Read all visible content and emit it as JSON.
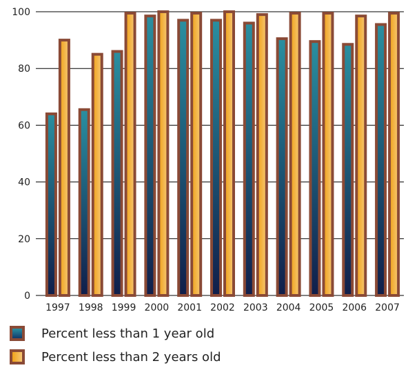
{
  "chart_data": {
    "type": "bar",
    "categories": [
      "1997",
      "1998",
      "1999",
      "2000",
      "2001",
      "2002",
      "2003",
      "2004",
      "2005",
      "2006",
      "2007"
    ],
    "series": [
      {
        "name": "Percent less than 1 year old",
        "values": [
          64,
          65.5,
          86,
          98.5,
          97,
          97,
          96,
          90.5,
          89.5,
          88.5,
          95.5
        ]
      },
      {
        "name": "Percent less than 2 years old",
        "values": [
          90,
          85,
          99.5,
          100,
          99.5,
          100,
          99,
          99.5,
          99.5,
          98.5,
          99.5
        ]
      }
    ],
    "yticks": [
      "0",
      "20",
      "40",
      "60",
      "80",
      "100"
    ],
    "ylim": [
      0,
      100
    ],
    "grid": true,
    "legend_position": "bottom-left",
    "colors": {
      "series1_top": "#2a8fa0",
      "series1_bottom": "#123a6b",
      "series2_left": "#f0a21a",
      "series2_right": "#f6c774",
      "bar_border": "#8a4a36",
      "gridline": "#000000"
    }
  }
}
